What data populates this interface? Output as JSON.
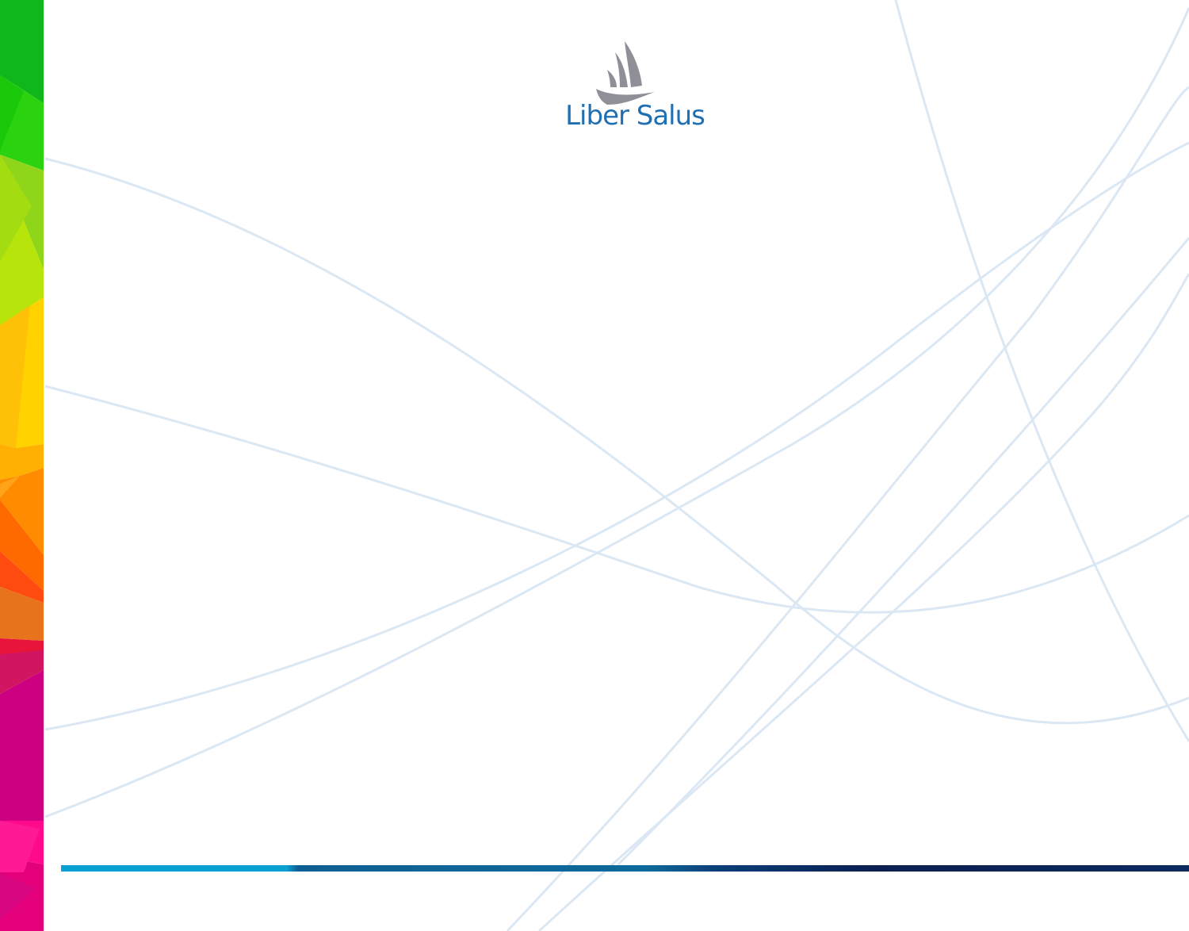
{
  "brand": {
    "name": "Liber Salus",
    "mark_icon": "bird-sail-logo-icon",
    "text_color": "#1f6fb2",
    "mark_color": "#8e8f97"
  },
  "decor": {
    "line_color": "#dbe8f4",
    "strip_colors": [
      "#12b81a",
      "#8ed617",
      "#ffd400",
      "#ff9f00",
      "#ff5a00",
      "#e6154f",
      "#d4007f",
      "#ff0a8c"
    ],
    "bar_colors": [
      "#0aa0d2",
      "#0e5f94",
      "#0b1f52"
    ]
  }
}
